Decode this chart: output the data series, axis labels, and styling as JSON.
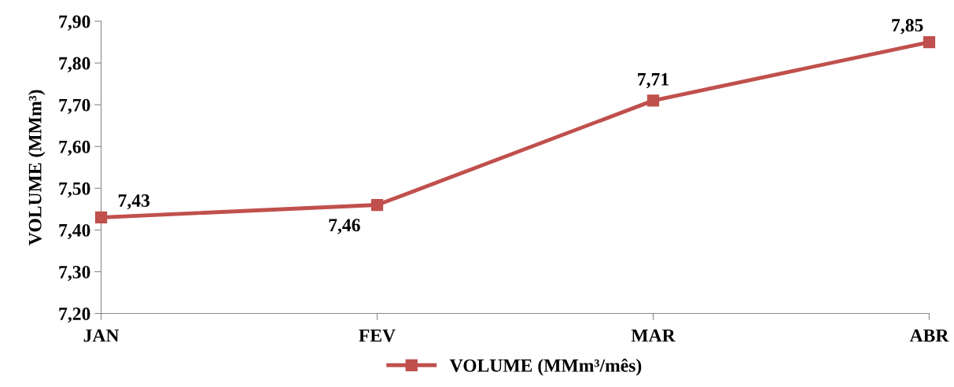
{
  "chart_data": {
    "type": "line",
    "ylabel": "VOLUME (MMm³)",
    "categories": [
      "JAN",
      "FEV",
      "MAR",
      "ABR"
    ],
    "series": [
      {
        "name": "VOLUME (MMm³/mês)",
        "color": "#c0504d",
        "values": [
          7.43,
          7.46,
          7.71,
          7.85
        ],
        "value_labels": [
          "7,43",
          "7,46",
          "7,71",
          "7,85"
        ]
      }
    ],
    "ylim": [
      7.2,
      7.9
    ],
    "yticks": [
      {
        "value": 7.2,
        "label": "7,20"
      },
      {
        "value": 7.3,
        "label": "7,30"
      },
      {
        "value": 7.4,
        "label": "7,40"
      },
      {
        "value": 7.5,
        "label": "7,50"
      },
      {
        "value": 7.6,
        "label": "7,60"
      },
      {
        "value": 7.7,
        "label": "7,70"
      },
      {
        "value": 7.8,
        "label": "7,80"
      },
      {
        "value": 7.9,
        "label": "7,90"
      }
    ],
    "marker": "square",
    "line_style": "solid",
    "grid": false,
    "legend": "bottom"
  }
}
